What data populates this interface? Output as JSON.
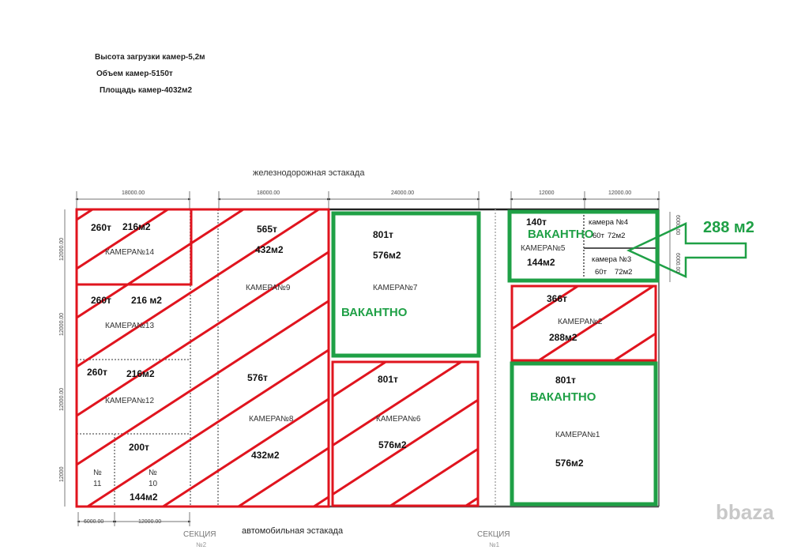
{
  "notes": [
    "Высота загрузки камер-5,2м",
    "Объем камер-5150т",
    "Площадь камер-4032м2"
  ],
  "top_label": "железнодорожная эстакада",
  "bottom_label": "автомобильная эстакада",
  "sections": [
    {
      "label": "СЕКЦИЯ",
      "num": "№2"
    },
    {
      "label": "СЕКЦИЯ",
      "num": "№1"
    }
  ],
  "dimensions": {
    "top": [
      "18000.00",
      "18000.00",
      "24000.00",
      "12000",
      "12000.00"
    ],
    "bottom": [
      "6000.00",
      "12000.00"
    ],
    "left": [
      "12000.00",
      "12000.00",
      "12000.00",
      "12000"
    ],
    "right": [
      "6000.00",
      "6000.00"
    ]
  },
  "colors": {
    "occupied": "#e0141e",
    "vacant": "#1fa046",
    "wall": "#888888"
  },
  "rooms": {
    "k14": {
      "name": "КАМЕРА№14",
      "tons": "260т",
      "area": "216м2",
      "status": "occupied"
    },
    "k13": {
      "name": "КАМЕРА№13",
      "tons": "260т",
      "area": "216 м2",
      "status": "occupied"
    },
    "k12": {
      "name": "КАМЕРА№12",
      "tons": "260т",
      "area": "216м2",
      "status": "occupied"
    },
    "k11": {
      "name": "№",
      "num": "11",
      "status": "occupied"
    },
    "k10": {
      "name": "№",
      "num": "10",
      "tons": "200т",
      "area": "144м2",
      "status": "occupied"
    },
    "k9": {
      "name": "КАМЕРА№9",
      "tons": "565т",
      "area": "432м2",
      "status": "occupied"
    },
    "k8": {
      "name": "КАМЕРА№8",
      "tons": "576т",
      "area": "432м2",
      "status": "occupied"
    },
    "k7": {
      "name": "КАМЕРА№7",
      "tons": "801т",
      "area": "576м2",
      "status": "vacant",
      "badge": "ВАКАНТНО"
    },
    "k6": {
      "name": "КАМЕРА№6",
      "tons": "801т",
      "area": "576м2",
      "status": "occupied"
    },
    "k5": {
      "name": "КАМЕРА№5",
      "tons": "140т",
      "area": "144м2",
      "status": "vacant",
      "badge": "ВАКАНТНО"
    },
    "k4": {
      "name": "камера №4",
      "tons": "60т",
      "area": "72м2"
    },
    "k3": {
      "name": "камера №3",
      "tons": "60т",
      "area": "72м2"
    },
    "k2": {
      "name": "КАМЕРА№2",
      "tons": "366т",
      "area": "288м2",
      "status": "occupied"
    },
    "k1": {
      "name": "КАМЕРА№1",
      "tons": "801т",
      "area": "576м2",
      "status": "vacant",
      "badge": "ВАКАНТНО"
    }
  },
  "callout": {
    "text": "288 м2",
    "icon": "arrow-left-icon"
  },
  "watermark": "bbaza"
}
